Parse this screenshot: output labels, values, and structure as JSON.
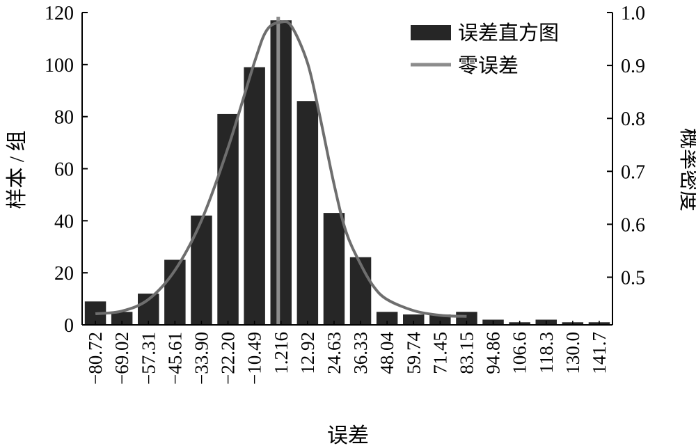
{
  "chart_data": {
    "type": "bar",
    "title": "",
    "xlabel": "误差",
    "ylabel_left": "样本 / 组",
    "ylabel_right": "概率密度",
    "categories": [
      "−80.72",
      "−69.02",
      "−57.31",
      "−45.61",
      "−33.90",
      "−22.20",
      "−10.49",
      "1.216",
      "12.92",
      "24.63",
      "36.33",
      "48.04",
      "59.74",
      "71.45",
      "83.15",
      "94.86",
      "106.6",
      "118.3",
      "130.0",
      "141.7"
    ],
    "left_axis": {
      "min": 0,
      "max": 120,
      "ticks": [
        "0",
        "20",
        "40",
        "60",
        "80",
        "100",
        "120"
      ]
    },
    "right_axis": {
      "min": 0.41,
      "max": 1.0,
      "ticks": [
        "0.5",
        "0.6",
        "0.7",
        "0.8",
        "0.9",
        "1.0"
      ]
    },
    "series": [
      {
        "name": "误差直方图",
        "type": "bar",
        "axis": "left",
        "color": "#262626",
        "values": [
          9,
          5,
          12,
          25,
          42,
          81,
          99,
          117,
          86,
          43,
          26,
          5,
          4,
          4,
          5,
          2,
          1,
          2,
          1,
          1
        ]
      },
      {
        "name": "零误差",
        "type": "reference-line",
        "color": "#8c8c8c",
        "x": 0
      },
      {
        "type": "line",
        "axis": "right",
        "color": "#6e6e6e",
        "x": [
          -80.72,
          -69.02,
          -57.31,
          -45.61,
          -33.9,
          -22.2,
          -10.49,
          -5,
          1.216,
          6,
          12.92,
          18,
          24.63,
          30,
          36.33,
          42,
          48.04,
          59.74,
          71.45,
          83.15
        ],
        "values": [
          0.431,
          0.436,
          0.458,
          0.513,
          0.607,
          0.744,
          0.906,
          0.967,
          0.982,
          0.973,
          0.905,
          0.812,
          0.676,
          0.585,
          0.525,
          0.483,
          0.458,
          0.437,
          0.428,
          0.426
        ]
      }
    ],
    "legend_position": "top-right",
    "grid": false
  }
}
